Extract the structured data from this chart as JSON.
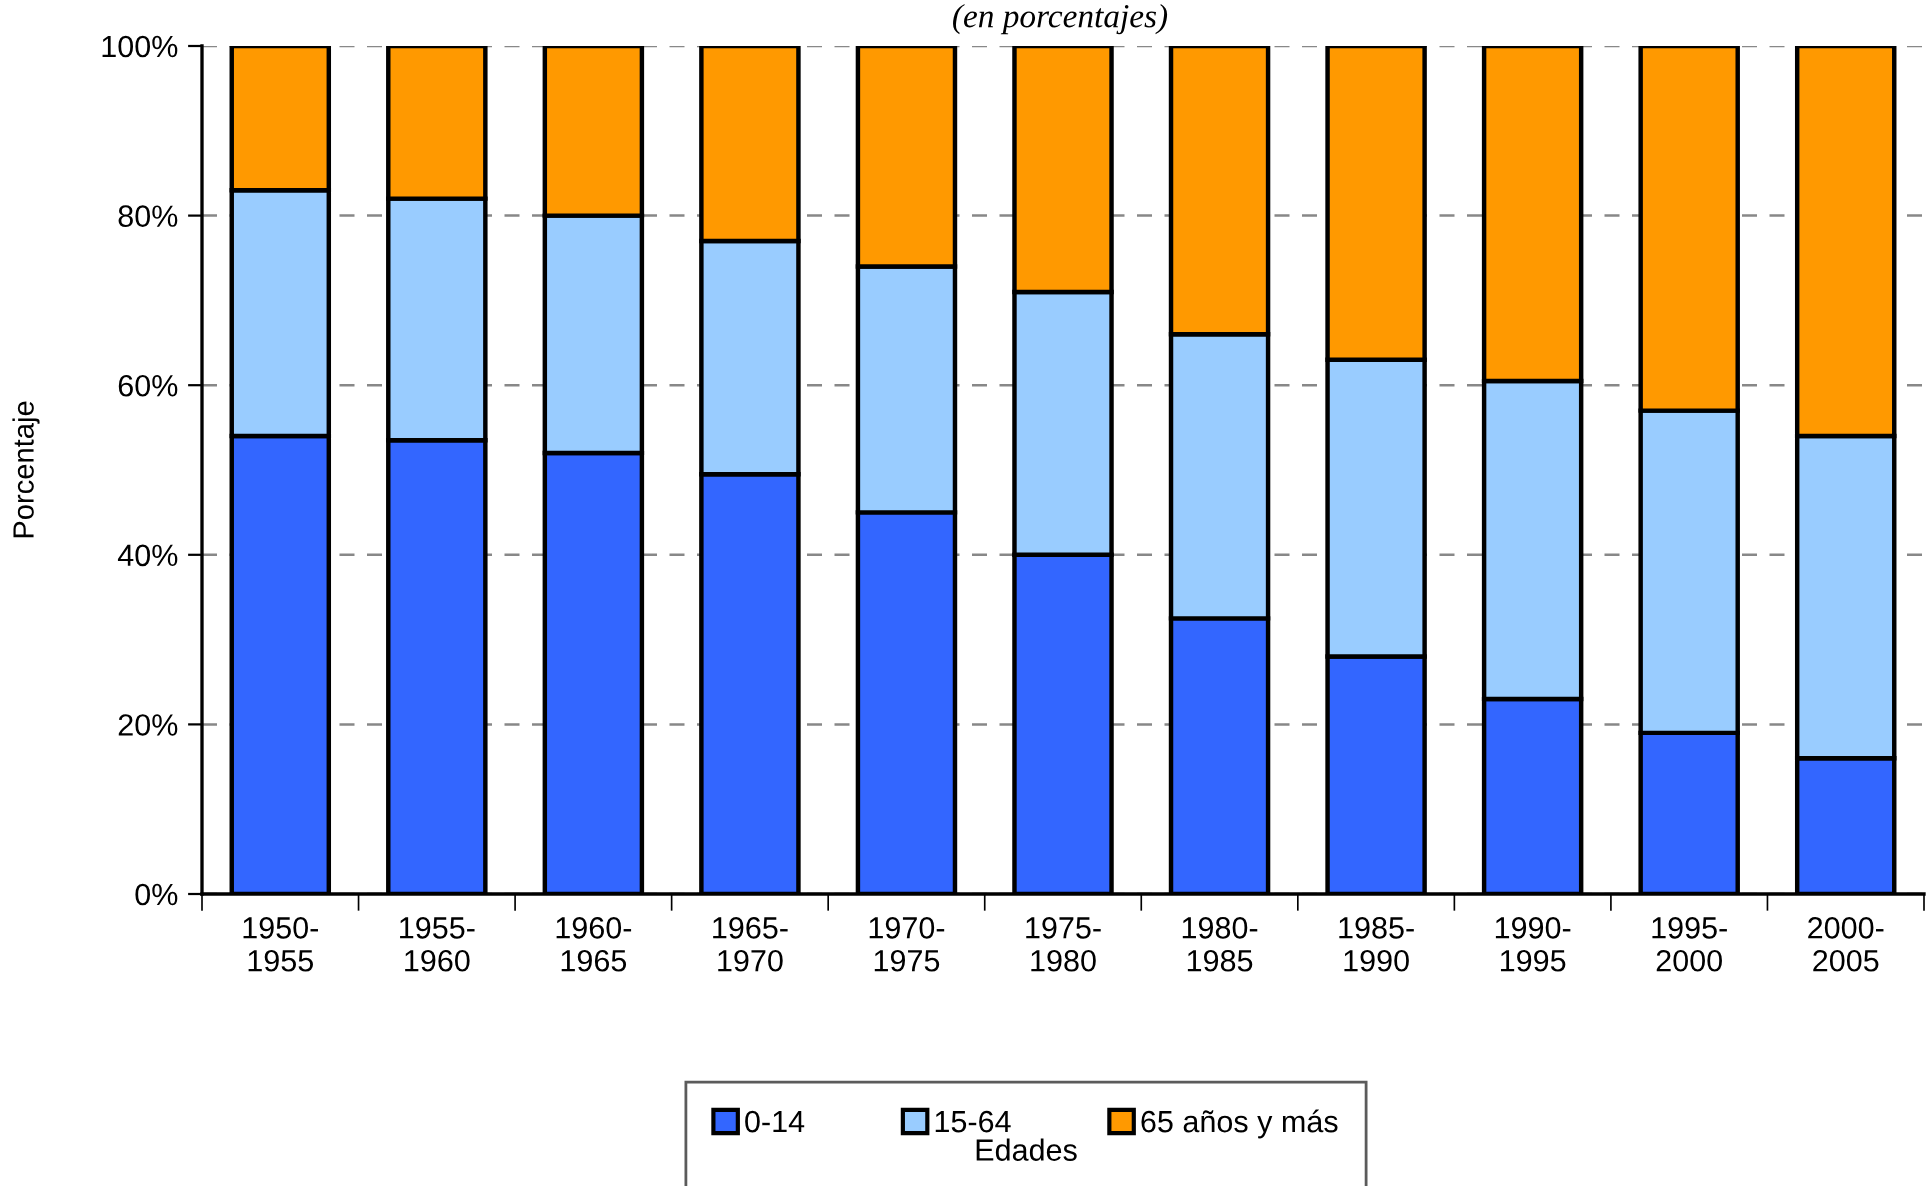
{
  "chart_data": {
    "type": "bar",
    "stacked": true,
    "title": "(en porcentajes)",
    "ylabel": "Porcentaje",
    "legend_title": "Edades",
    "categories": [
      "1950-\n1955",
      "1955-\n1960",
      "1960-\n1965",
      "1965-\n1970",
      "1970-\n1975",
      "1975-\n1980",
      "1980-\n1985",
      "1985-\n1990",
      "1990-\n1995",
      "1995-\n2000",
      "2000-\n2005"
    ],
    "series": [
      {
        "name": "0-14",
        "color": "#3366ff",
        "values": [
          54,
          53.5,
          52,
          49.5,
          45,
          40,
          32.5,
          28,
          23,
          19,
          16
        ]
      },
      {
        "name": "15-64",
        "color": "#99ccff",
        "values": [
          29,
          28.5,
          28,
          27.5,
          29,
          31,
          33.5,
          35,
          37.5,
          38,
          38
        ]
      },
      {
        "name": "65 años y más",
        "color": "#ff9900",
        "values": [
          17,
          18,
          20,
          23,
          26,
          29,
          34,
          37,
          39.5,
          43,
          46
        ]
      }
    ],
    "ylim": [
      0,
      100
    ],
    "yticks": [
      {
        "value": 0,
        "label": "0%"
      },
      {
        "value": 20,
        "label": "20%"
      },
      {
        "value": 40,
        "label": "40%"
      },
      {
        "value": 60,
        "label": "60%"
      },
      {
        "value": 80,
        "label": "80%"
      },
      {
        "value": 100,
        "label": "100%"
      }
    ],
    "grid": "y",
    "legend": "bottom"
  }
}
